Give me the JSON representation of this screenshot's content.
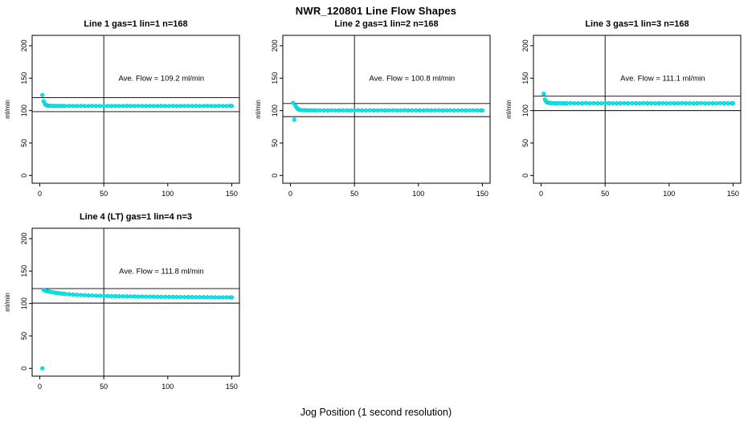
{
  "figure": {
    "title": "NWR_120801  Line Flow Shapes",
    "xlabel": "Jog Position (1 second resolution)"
  },
  "axes": {
    "xlim": [
      -6,
      156
    ],
    "ylim": [
      -12,
      216
    ],
    "x_ticks": [
      0,
      50,
      100,
      150
    ],
    "y_ticks": [
      0,
      50,
      100,
      150,
      200
    ],
    "ylabel": "ml/min",
    "grid": false
  },
  "style": {
    "point_fill": "#00EEEE",
    "point_stroke": "#00C5CD",
    "ref_line_color": "#000000",
    "background": "#FFFFFF"
  },
  "chart_data": [
    {
      "type": "scatter",
      "title": "Line 1 gas=1 lin=1 n=168",
      "n": 168,
      "ave_flow": 109.2,
      "ave_flow_label": "Ave. Flow =  109.2  ml/min",
      "ref_lines": {
        "upper": 120.1,
        "lower": 98.3,
        "vertical_x": 50
      },
      "points": [
        [
          2,
          124
        ],
        [
          3,
          114.5
        ],
        [
          4,
          110
        ],
        [
          5,
          108.5
        ],
        [
          6,
          107.9
        ],
        [
          7,
          107.6
        ],
        [
          8,
          107.5
        ],
        [
          10,
          107.3
        ],
        [
          12,
          107.2
        ],
        [
          14,
          107.3
        ],
        [
          16,
          107.2
        ],
        [
          18,
          107.3
        ],
        [
          20,
          107.2
        ],
        [
          23,
          107.3
        ],
        [
          26,
          107.2
        ],
        [
          29,
          107.1
        ],
        [
          32,
          107.3
        ],
        [
          35,
          107.2
        ],
        [
          38,
          107.2
        ],
        [
          41,
          107.3
        ],
        [
          44,
          107.1
        ],
        [
          47,
          107.2
        ],
        [
          50,
          107.3
        ],
        [
          53,
          107.2
        ],
        [
          56,
          107.1
        ],
        [
          59,
          107.3
        ],
        [
          62,
          107.2
        ],
        [
          65,
          107.2
        ],
        [
          68,
          107.3
        ],
        [
          71,
          107.1
        ],
        [
          74,
          107.2
        ],
        [
          77,
          107.3
        ],
        [
          80,
          107.2
        ],
        [
          83,
          107.1
        ],
        [
          86,
          107.3
        ],
        [
          89,
          107.2
        ],
        [
          92,
          107.2
        ],
        [
          95,
          107.3
        ],
        [
          98,
          107.1
        ],
        [
          101,
          107.2
        ],
        [
          104,
          107.3
        ],
        [
          107,
          107.2
        ],
        [
          110,
          107.1
        ],
        [
          113,
          107.3
        ],
        [
          116,
          107.2
        ],
        [
          119,
          107.2
        ],
        [
          122,
          107.3
        ],
        [
          125,
          107.1
        ],
        [
          128,
          107.2
        ],
        [
          131,
          107.3
        ],
        [
          134,
          107.2
        ],
        [
          137,
          107.1
        ],
        [
          140,
          107.3
        ],
        [
          143,
          107.2
        ],
        [
          146,
          107.2
        ],
        [
          149,
          107.3
        ],
        [
          150,
          107.2
        ]
      ]
    },
    {
      "type": "scatter",
      "title": "Line 2 gas=1 lin=2 n=168",
      "n": 168,
      "ave_flow": 100.8,
      "ave_flow_label": "Ave. Flow =  100.8  ml/min",
      "ref_lines": {
        "upper": 110.9,
        "lower": 90.7,
        "vertical_x": 50
      },
      "points": [
        [
          2,
          112
        ],
        [
          3,
          86
        ],
        [
          4,
          107
        ],
        [
          5,
          104
        ],
        [
          6,
          102.3
        ],
        [
          7,
          101.4
        ],
        [
          8,
          101
        ],
        [
          10,
          100.7
        ],
        [
          12,
          100.5
        ],
        [
          14,
          100.4
        ],
        [
          16,
          100.5
        ],
        [
          18,
          100.4
        ],
        [
          20,
          100.3
        ],
        [
          23,
          100.5
        ],
        [
          26,
          100.4
        ],
        [
          29,
          100.3
        ],
        [
          32,
          100.5
        ],
        [
          35,
          100.4
        ],
        [
          38,
          100.3
        ],
        [
          41,
          100.5
        ],
        [
          44,
          100.4
        ],
        [
          47,
          100.3
        ],
        [
          50,
          100.4
        ],
        [
          53,
          100.5
        ],
        [
          56,
          100.3
        ],
        [
          59,
          100.4
        ],
        [
          62,
          100.5
        ],
        [
          65,
          100.3
        ],
        [
          68,
          100.4
        ],
        [
          71,
          100.5
        ],
        [
          74,
          100.3
        ],
        [
          77,
          100.4
        ],
        [
          80,
          100.5
        ],
        [
          83,
          100.3
        ],
        [
          86,
          100.4
        ],
        [
          89,
          100.5
        ],
        [
          92,
          100.3
        ],
        [
          95,
          100.4
        ],
        [
          98,
          100.5
        ],
        [
          101,
          100.3
        ],
        [
          104,
          100.4
        ],
        [
          107,
          100.5
        ],
        [
          110,
          100.3
        ],
        [
          113,
          100.4
        ],
        [
          116,
          100.5
        ],
        [
          119,
          100.3
        ],
        [
          122,
          100.4
        ],
        [
          125,
          100.5
        ],
        [
          128,
          100.3
        ],
        [
          131,
          100.4
        ],
        [
          134,
          100.5
        ],
        [
          137,
          100.3
        ],
        [
          140,
          100.4
        ],
        [
          143,
          100.5
        ],
        [
          146,
          100.3
        ],
        [
          149,
          100.4
        ],
        [
          150,
          100.4
        ]
      ]
    },
    {
      "type": "scatter",
      "title": "Line 3 gas=1 lin=3 n=168",
      "n": 168,
      "ave_flow": 111.1,
      "ave_flow_label": "Ave. Flow =  111.1  ml/min",
      "ref_lines": {
        "upper": 122.2,
        "lower": 100.0,
        "vertical_x": 50
      },
      "points": [
        [
          2,
          126
        ],
        [
          3,
          117
        ],
        [
          4,
          113.5
        ],
        [
          5,
          112.5
        ],
        [
          6,
          112
        ],
        [
          7,
          111.8
        ],
        [
          8,
          111.6
        ],
        [
          10,
          111.5
        ],
        [
          12,
          111.3
        ],
        [
          14,
          111.5
        ],
        [
          16,
          111.2
        ],
        [
          18,
          111.4
        ],
        [
          20,
          111.3
        ],
        [
          23,
          111.5
        ],
        [
          26,
          111.2
        ],
        [
          29,
          111.4
        ],
        [
          32,
          111.3
        ],
        [
          35,
          111.5
        ],
        [
          38,
          111.2
        ],
        [
          41,
          111.4
        ],
        [
          44,
          111.3
        ],
        [
          47,
          111.2
        ],
        [
          50,
          111.5
        ],
        [
          53,
          111.3
        ],
        [
          56,
          111.4
        ],
        [
          59,
          111.2
        ],
        [
          62,
          111.3
        ],
        [
          65,
          111.5
        ],
        [
          68,
          111.2
        ],
        [
          71,
          111.4
        ],
        [
          74,
          111.3
        ],
        [
          77,
          111.2
        ],
        [
          80,
          111.5
        ],
        [
          83,
          111.3
        ],
        [
          86,
          111.4
        ],
        [
          89,
          111.2
        ],
        [
          92,
          111.3
        ],
        [
          95,
          111.5
        ],
        [
          98,
          111.2
        ],
        [
          101,
          111.4
        ],
        [
          104,
          111.3
        ],
        [
          107,
          111.2
        ],
        [
          110,
          111.5
        ],
        [
          113,
          111.3
        ],
        [
          116,
          111.4
        ],
        [
          119,
          111.2
        ],
        [
          122,
          111.3
        ],
        [
          125,
          111.5
        ],
        [
          128,
          111.2
        ],
        [
          131,
          111.4
        ],
        [
          134,
          111.3
        ],
        [
          137,
          111.2
        ],
        [
          140,
          111.5
        ],
        [
          143,
          111.3
        ],
        [
          146,
          111.4
        ],
        [
          149,
          111.2
        ],
        [
          150,
          111.3
        ]
      ]
    },
    {
      "type": "scatter",
      "title": "Line 4 (LT) gas=1 lin=4 n=3",
      "n": 3,
      "ave_flow": 111.8,
      "ave_flow_label": "Ave. Flow =  111.8  ml/min",
      "ref_lines": {
        "upper": 123.0,
        "lower": 100.6,
        "vertical_x": 50
      },
      "points": [
        [
          2,
          0
        ],
        [
          3,
          121
        ],
        [
          4,
          120.2
        ],
        [
          5,
          119.6
        ],
        [
          6,
          119.1
        ],
        [
          7,
          118.6
        ],
        [
          8,
          118.2
        ],
        [
          10,
          117.4
        ],
        [
          12,
          116.7
        ],
        [
          14,
          116.1
        ],
        [
          16,
          115.6
        ],
        [
          18,
          115.1
        ],
        [
          20,
          114.7
        ],
        [
          23,
          114.2
        ],
        [
          26,
          113.8
        ],
        [
          29,
          113.4
        ],
        [
          32,
          113.1
        ],
        [
          35,
          112.8
        ],
        [
          38,
          112.5
        ],
        [
          41,
          112.3
        ],
        [
          44,
          112.1
        ],
        [
          47,
          111.9
        ],
        [
          50,
          111.7
        ],
        [
          53,
          111.5
        ],
        [
          56,
          111.4
        ],
        [
          59,
          111.3
        ],
        [
          62,
          111.2
        ],
        [
          65,
          111.1
        ],
        [
          68,
          111
        ],
        [
          71,
          110.9
        ],
        [
          74,
          110.8
        ],
        [
          77,
          110.7
        ],
        [
          80,
          110.7
        ],
        [
          83,
          110.6
        ],
        [
          86,
          110.5
        ],
        [
          89,
          110.5
        ],
        [
          92,
          110.4
        ],
        [
          95,
          110.3
        ],
        [
          98,
          110.3
        ],
        [
          101,
          110.2
        ],
        [
          104,
          110.2
        ],
        [
          107,
          110.1
        ],
        [
          110,
          110
        ],
        [
          113,
          110
        ],
        [
          116,
          109.9
        ],
        [
          119,
          109.9
        ],
        [
          122,
          109.8
        ],
        [
          125,
          109.8
        ],
        [
          128,
          109.7
        ],
        [
          131,
          109.7
        ],
        [
          134,
          109.6
        ],
        [
          137,
          109.6
        ],
        [
          140,
          109.5
        ],
        [
          143,
          109.5
        ],
        [
          146,
          109.4
        ],
        [
          149,
          109.4
        ],
        [
          150,
          109.4
        ]
      ]
    }
  ]
}
